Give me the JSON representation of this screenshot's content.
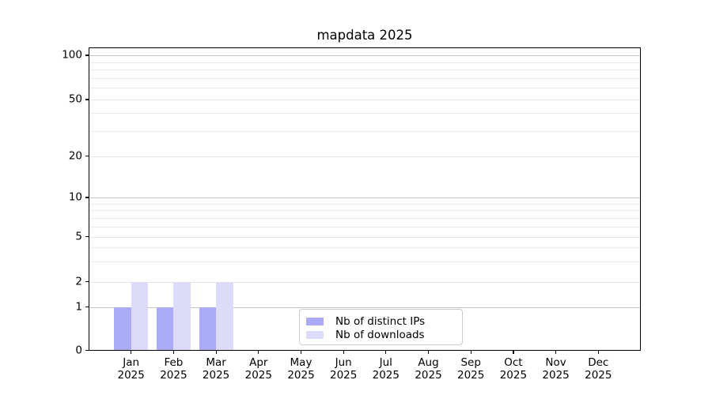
{
  "chart_data": {
    "type": "bar",
    "title": "mapdata 2025",
    "x_year": "2025",
    "categories": [
      "Jan",
      "Feb",
      "Mar",
      "Apr",
      "May",
      "Jun",
      "Jul",
      "Aug",
      "Sep",
      "Oct",
      "Nov",
      "Dec"
    ],
    "series": [
      {
        "name": "Nb of distinct IPs",
        "color": "#aaaaf5",
        "values": [
          1,
          1,
          1,
          0,
          0,
          0,
          0,
          0,
          0,
          0,
          0,
          0
        ]
      },
      {
        "name": "Nb of downloads",
        "color": "#dcdcfa",
        "values": [
          2,
          2,
          2,
          0,
          0,
          0,
          0,
          0,
          0,
          0,
          0,
          0
        ]
      }
    ],
    "xlabel": "",
    "ylabel": "",
    "yaxis": {
      "scale": "log-like with 0 baseline",
      "ticks": [
        0,
        1,
        2,
        5,
        10,
        20,
        50,
        100
      ],
      "minor_ticks": [
        3,
        4,
        6,
        7,
        8,
        9,
        30,
        40,
        60,
        70,
        80,
        90
      ],
      "ylim": [
        0,
        114
      ]
    },
    "legend": {
      "position": "lower-center-inside",
      "entries": [
        "Nb of distinct IPs",
        "Nb of downloads"
      ]
    },
    "grid": "horizontal",
    "colors": {
      "major_gridline": "#c4c4c4",
      "labeled_gridline": "#e2e2e2",
      "minor_gridline": "#ececec",
      "spine": "#000000",
      "legend_border": "#cccccc",
      "background": "#ffffff"
    }
  }
}
